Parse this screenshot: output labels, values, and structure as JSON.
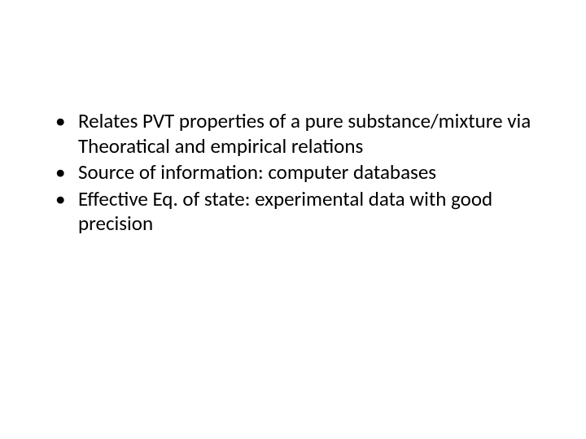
{
  "slide": {
    "background_color": "#ffffff",
    "text_color": "#000000",
    "font_family": "Calibri",
    "font_size_pt": 25,
    "line_height": 1.22,
    "bullets": [
      "Relates PVT properties of a pure substance/mixture via Theoratical and empirical relations",
      "Source of information: computer databases",
      "Effective Eq. of state: experimental data with good precision"
    ]
  }
}
